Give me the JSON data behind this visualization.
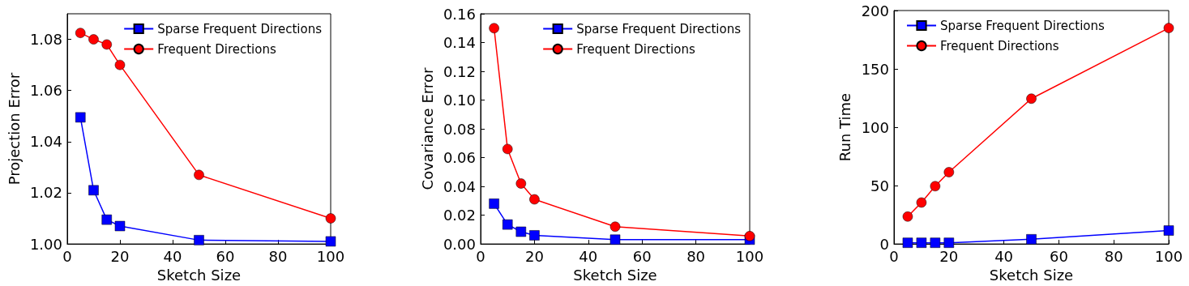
{
  "chart_data": [
    {
      "type": "line",
      "xlabel": "Sketch Size",
      "ylabel": "Projection Error",
      "xlim": [
        0,
        100
      ],
      "xticks": [
        0,
        20,
        40,
        60,
        80,
        100
      ],
      "ylim": [
        1.0,
        1.09
      ],
      "yticks": [
        {
          "value": 1.0,
          "label": "1.00"
        },
        {
          "value": 1.02,
          "label": "1.02"
        },
        {
          "value": 1.04,
          "label": "1.04"
        },
        {
          "value": 1.06,
          "label": "1.06"
        },
        {
          "value": 1.08,
          "label": "1.08"
        }
      ],
      "x": [
        5,
        10,
        15,
        20,
        50,
        100
      ],
      "legend": "top right",
      "grid": false,
      "series": [
        {
          "name": "Sparse Frequent Directions",
          "color": "#0000ff",
          "marker": "square",
          "values": [
            1.0495,
            1.021,
            1.0095,
            1.007,
            1.0015,
            1.001
          ]
        },
        {
          "name": "Frequent Directions",
          "color": "#ff0000",
          "marker": "circle",
          "values": [
            1.0825,
            1.08,
            1.078,
            1.07,
            1.027,
            1.01
          ]
        }
      ]
    },
    {
      "type": "line",
      "xlabel": "Sketch Size",
      "ylabel": "Covariance Error",
      "xlim": [
        0,
        100
      ],
      "xticks": [
        0,
        20,
        40,
        60,
        80,
        100
      ],
      "ylim": [
        0,
        0.16
      ],
      "yticks": [
        {
          "value": 0,
          "label": "0.00"
        },
        {
          "value": 0.02,
          "label": "0.02"
        },
        {
          "value": 0.04,
          "label": "0.04"
        },
        {
          "value": 0.06,
          "label": "0.06"
        },
        {
          "value": 0.08,
          "label": "0.08"
        },
        {
          "value": 0.1,
          "label": "0.10"
        },
        {
          "value": 0.12,
          "label": "0.12"
        },
        {
          "value": 0.14,
          "label": "0.14"
        },
        {
          "value": 0.16,
          "label": "0.16"
        }
      ],
      "x": [
        5,
        10,
        15,
        20,
        50,
        100
      ],
      "legend": "top right",
      "grid": false,
      "series": [
        {
          "name": "Sparse Frequent Directions",
          "color": "#0000ff",
          "marker": "square",
          "values": [
            0.028,
            0.0135,
            0.0085,
            0.006,
            0.003,
            0.003
          ]
        },
        {
          "name": "Frequent Directions",
          "color": "#ff0000",
          "marker": "circle",
          "values": [
            0.15,
            0.066,
            0.042,
            0.031,
            0.012,
            0.0055
          ]
        }
      ]
    },
    {
      "type": "line",
      "xlabel": "Sketch Size",
      "ylabel": "Run Time",
      "xlim": [
        0,
        100
      ],
      "xticks": [
        0,
        20,
        40,
        60,
        80,
        100
      ],
      "ylim": [
        0,
        200
      ],
      "yticks": [
        0,
        50,
        100,
        150,
        200
      ],
      "x": [
        5,
        10,
        15,
        20,
        50,
        100
      ],
      "legend": "top left",
      "grid": false,
      "series": [
        {
          "name": "Sparse Frequent Directions",
          "color": "#0000ff",
          "marker": "square",
          "values": [
            1,
            1,
            1,
            1,
            4,
            11.5
          ]
        },
        {
          "name": "Frequent Directions",
          "color": "#ff0000",
          "marker": "circle",
          "values": [
            23.5,
            35.5,
            49.5,
            61.5,
            124.5,
            185
          ]
        }
      ]
    }
  ]
}
